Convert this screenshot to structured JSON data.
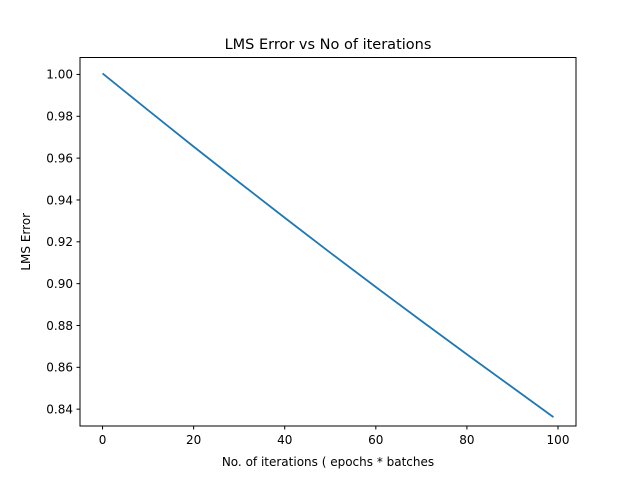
{
  "chart_data": {
    "type": "line",
    "title": "LMS Error vs No of iterations",
    "xlabel": "No. of iterations ( epochs * batches",
    "ylabel": "LMS Error",
    "xlim": [
      -4.95,
      103.95
    ],
    "ylim": [
      0.83195,
      1.0081
    ],
    "xticks": [
      0,
      20,
      40,
      60,
      80,
      100
    ],
    "yticks": [
      0.84,
      0.86,
      0.88,
      0.9,
      0.92,
      0.94,
      0.96,
      0.98,
      1.0
    ],
    "ytick_labels": [
      "0.84",
      "0.86",
      "0.88",
      "0.90",
      "0.92",
      "0.94",
      "0.96",
      "0.98",
      "1.00"
    ],
    "grid": false,
    "series": [
      {
        "color": "#1f77b4",
        "x": [
          0,
          10,
          20,
          30,
          40,
          50,
          60,
          70,
          80,
          90,
          99
        ],
        "y": [
          1.0005,
          0.9829,
          0.9655,
          0.9484,
          0.9315,
          0.9148,
          0.8984,
          0.8822,
          0.8662,
          0.8504,
          0.8362
        ]
      }
    ]
  }
}
